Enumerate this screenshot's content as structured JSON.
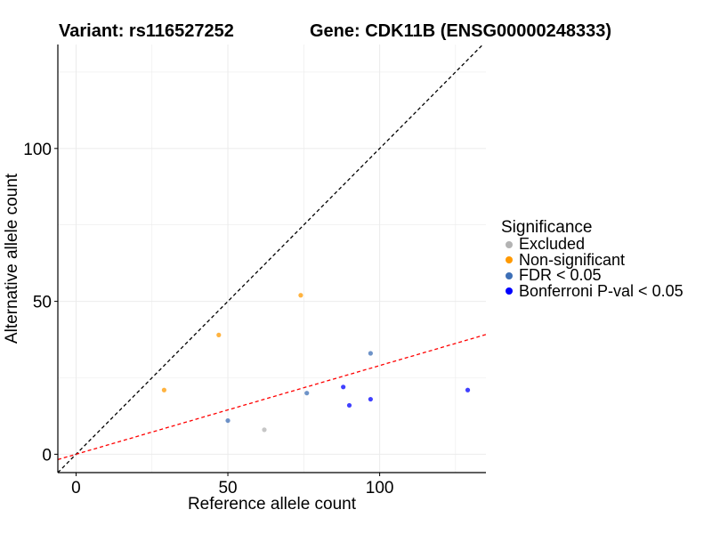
{
  "header": {
    "variant_text": "Variant: rs116527252",
    "gene_text": "Gene: CDK11B (ENSG00000248333)"
  },
  "chart_data": {
    "type": "scatter",
    "title": "",
    "xlabel": "Reference allele count",
    "ylabel": "Alternative allele count",
    "xlim": [
      -6,
      135
    ],
    "ylim": [
      -6,
      134
    ],
    "xticks": [
      0,
      50,
      100
    ],
    "yticks": [
      0,
      50,
      100
    ],
    "grid": true,
    "legend_position": "right",
    "legend_title": "Significance",
    "categories": [
      {
        "name": "Excluded",
        "color": "#b3b3b3"
      },
      {
        "name": "Non-significant",
        "color": "#ff9900"
      },
      {
        "name": "FDR < 0.05",
        "color": "#3d6fb6"
      },
      {
        "name": "Bonferroni P-val < 0.05",
        "color": "#0000ff"
      }
    ],
    "points": [
      {
        "x": 62,
        "y": 8,
        "category": "Excluded"
      },
      {
        "x": 29,
        "y": 21,
        "category": "Non-significant"
      },
      {
        "x": 47,
        "y": 39,
        "category": "Non-significant"
      },
      {
        "x": 74,
        "y": 52,
        "category": "Non-significant"
      },
      {
        "x": 50,
        "y": 11,
        "category": "FDR < 0.05"
      },
      {
        "x": 76,
        "y": 20,
        "category": "FDR < 0.05"
      },
      {
        "x": 97,
        "y": 33,
        "category": "FDR < 0.05"
      },
      {
        "x": 88,
        "y": 22,
        "category": "Bonferroni P-val < 0.05"
      },
      {
        "x": 90,
        "y": 16,
        "category": "Bonferroni P-val < 0.05"
      },
      {
        "x": 97,
        "y": 18,
        "category": "Bonferroni P-val < 0.05"
      },
      {
        "x": 129,
        "y": 21,
        "category": "Bonferroni P-val < 0.05"
      }
    ],
    "reference_lines": [
      {
        "slope": 1,
        "intercept": 0,
        "color": "#000000",
        "style": "dashed"
      },
      {
        "slope": 0.29,
        "intercept": 0,
        "color": "#ff0000",
        "style": "dashed"
      }
    ]
  }
}
